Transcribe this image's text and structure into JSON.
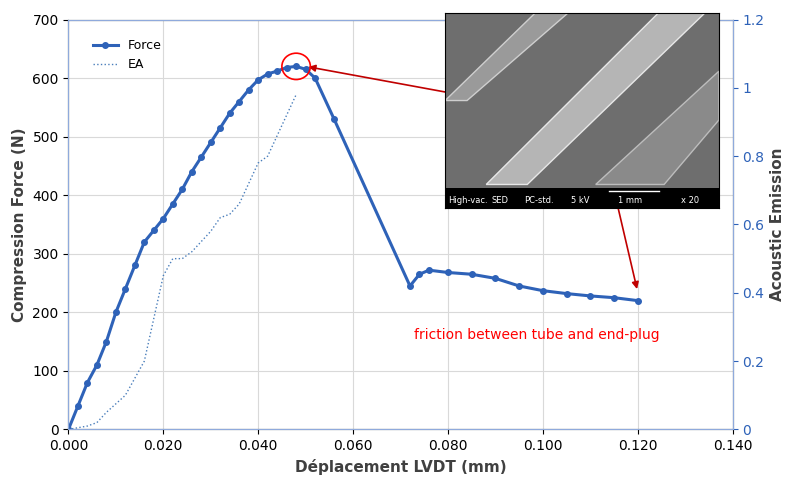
{
  "chart_data": {
    "type": "line",
    "x_label": "Déplacement LVDT (mm)",
    "y_label": "Compression Force (N)",
    "y2_label": "Acoustic Emission",
    "annotations": [
      "friction between tube and end-plug"
    ],
    "inset_labels": [
      "High-vac.",
      "SED",
      "PC-std.",
      "5 kV",
      "1 mm",
      "x 20"
    ],
    "legend": "upper left",
    "grid": true,
    "xlim": [
      0,
      0.14
    ],
    "xticks": [
      {
        "value": 0,
        "label": "0.000"
      },
      {
        "value": 0.02,
        "label": "0.020"
      },
      {
        "value": 0.04,
        "label": "0.040"
      },
      {
        "value": 0.06,
        "label": "0.060"
      },
      {
        "value": 0.08,
        "label": "0.080"
      },
      {
        "value": 0.1,
        "label": "0.100"
      },
      {
        "value": 0.12,
        "label": "0.120"
      },
      {
        "value": 0.14,
        "label": "0.140"
      }
    ],
    "ylim": [
      0,
      700
    ],
    "yticks": [
      0,
      100,
      200,
      300,
      400,
      500,
      600,
      700
    ],
    "y2lim": [
      0,
      1.2
    ],
    "y2ticks": [
      0,
      0.2,
      0.4,
      0.6,
      0.8,
      1,
      1.2
    ],
    "series": [
      {
        "name": "Force",
        "color": "#2e62b8",
        "marker": "o",
        "line_style": "solid",
        "x": [
          0,
          0.002,
          0.004,
          0.006,
          0.008,
          0.01,
          0.012,
          0.014,
          0.016,
          0.018,
          0.02,
          0.022,
          0.024,
          0.026,
          0.028,
          0.03,
          0.032,
          0.034,
          0.036,
          0.038,
          0.04,
          0.042,
          0.044,
          0.046,
          0.048,
          0.05,
          0.052,
          0.056,
          0.072,
          0.074,
          0.076,
          0.08,
          0.085,
          0.09,
          0.095,
          0.1,
          0.105,
          0.11,
          0.115,
          0.12
        ],
        "values": [
          0,
          40,
          80,
          110,
          150,
          200,
          240,
          280,
          320,
          340,
          360,
          385,
          410,
          440,
          465,
          490,
          515,
          540,
          560,
          580,
          597,
          607,
          612,
          618,
          620,
          615,
          600,
          530,
          245,
          265,
          272,
          268,
          265,
          258,
          245,
          237,
          232,
          228,
          225,
          220
        ]
      },
      {
        "name": "EA",
        "color": "#4a7ebb",
        "marker": "none",
        "line_style": "dotted",
        "axis": "y2",
        "x": [
          0,
          0.004,
          0.006,
          0.008,
          0.012,
          0.016,
          0.02,
          0.022,
          0.024,
          0.026,
          0.03,
          0.032,
          0.034,
          0.036,
          0.038,
          0.04,
          0.042,
          0.044,
          0.046,
          0.048
        ],
        "values": [
          0,
          0.01,
          0.02,
          0.05,
          0.1,
          0.2,
          0.45,
          0.5,
          0.5,
          0.52,
          0.58,
          0.62,
          0.63,
          0.66,
          0.72,
          0.78,
          0.8,
          0.86,
          0.92,
          0.98
        ]
      }
    ]
  }
}
